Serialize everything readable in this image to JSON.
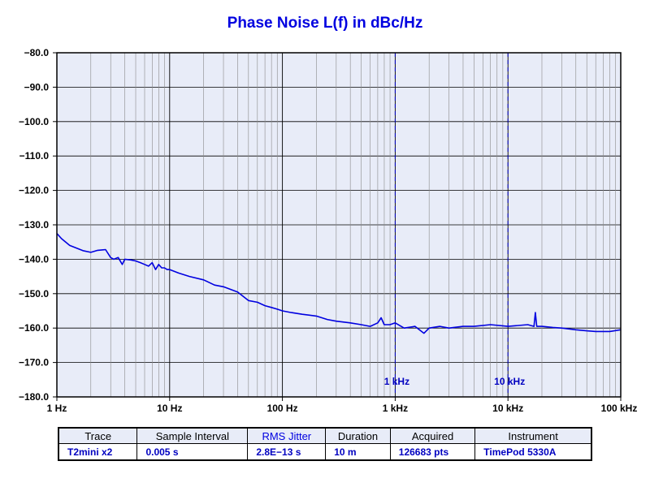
{
  "chart_data": {
    "type": "line",
    "title": "Phase Noise L(f) in dBc/Hz",
    "xlabel": "",
    "ylabel": "",
    "x_scale": "log",
    "xlim": [
      1,
      100000
    ],
    "ylim": [
      -180,
      -80
    ],
    "grid": true,
    "x_ticks": [
      {
        "value": 1,
        "label": "1 Hz"
      },
      {
        "value": 10,
        "label": "10 Hz"
      },
      {
        "value": 100,
        "label": "100 Hz"
      },
      {
        "value": 1000,
        "label": "1 kHz"
      },
      {
        "value": 10000,
        "label": "10 kHz"
      },
      {
        "value": 100000,
        "label": "100 kHz"
      }
    ],
    "y_ticks": [
      {
        "value": -80,
        "label": "−80.0"
      },
      {
        "value": -90,
        "label": "−90.0"
      },
      {
        "value": -100,
        "label": "−100.0"
      },
      {
        "value": -110,
        "label": "−110.0"
      },
      {
        "value": -120,
        "label": "−120.0"
      },
      {
        "value": -130,
        "label": "−130.0"
      },
      {
        "value": -140,
        "label": "−140.0"
      },
      {
        "value": -150,
        "label": "−150.0"
      },
      {
        "value": -160,
        "label": "−160.0"
      },
      {
        "value": -170,
        "label": "−170.0"
      },
      {
        "value": -180,
        "label": "−180.0"
      }
    ],
    "markers": [
      {
        "x": 1000,
        "label": "1 kHz"
      },
      {
        "x": 10000,
        "label": "10 kHz"
      }
    ],
    "series": [
      {
        "color": "#0000e0",
        "x": [
          1,
          1.1,
          1.3,
          1.5,
          1.7,
          2.0,
          2.3,
          2.7,
          3.0,
          3.2,
          3.5,
          3.8,
          4.0,
          4.5,
          5.0,
          5.5,
          6.0,
          6.5,
          7.0,
          7.5,
          8.0,
          8.5,
          9.0,
          9.5,
          10,
          12,
          15,
          20,
          25,
          30,
          40,
          50,
          60,
          70,
          80,
          90,
          100,
          120,
          150,
          200,
          250,
          300,
          400,
          500,
          600,
          700,
          750,
          800,
          900,
          1000,
          1200,
          1500,
          1800,
          2000,
          2500,
          3000,
          4000,
          5000,
          7000,
          10000,
          15000,
          17000,
          17500,
          18000,
          20000,
          25000,
          30000,
          40000,
          50000,
          60000,
          70000,
          80000,
          100000
        ],
        "y": [
          -132.5,
          -134,
          -136,
          -136.8,
          -137.5,
          -138,
          -137.4,
          -137.2,
          -139.5,
          -140,
          -139.5,
          -141.5,
          -140,
          -140.2,
          -140.5,
          -141,
          -141.5,
          -142,
          -141,
          -143,
          -141.5,
          -142.5,
          -142.5,
          -143,
          -143,
          -144,
          -145,
          -146,
          -147.5,
          -148,
          -149.5,
          -152,
          -152.5,
          -153.5,
          -154,
          -154.5,
          -155,
          -155.5,
          -156,
          -156.5,
          -157.5,
          -158,
          -158.5,
          -159,
          -159.5,
          -158.5,
          -157,
          -159,
          -159,
          -158.5,
          -160,
          -159.5,
          -161.5,
          -160,
          -159.5,
          -160,
          -159.5,
          -159.5,
          -159,
          -159.5,
          -159,
          -159.5,
          -155.5,
          -159.5,
          -159.5,
          -159.8,
          -160,
          -160.5,
          -160.8,
          -161,
          -161,
          -161,
          -160.5
        ]
      }
    ]
  },
  "info_table": {
    "headers": [
      "Trace",
      "Sample Interval",
      "RMS Jitter",
      "Duration",
      "Acquired",
      "Instrument"
    ],
    "values": [
      "T2mini x2",
      "0.005 s",
      "2.8E−13 s",
      "10 m",
      "126683 pts",
      "TimePod 5330A"
    ]
  }
}
